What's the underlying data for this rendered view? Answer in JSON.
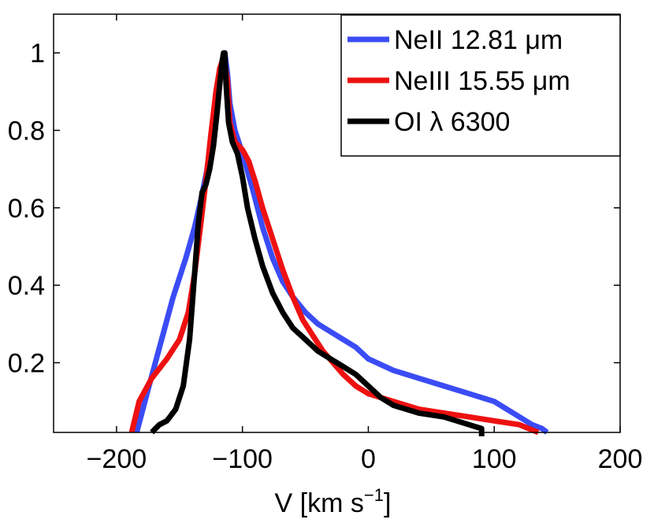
{
  "chart_data": {
    "type": "line",
    "xlabel": "V [km s",
    "xlabel_sup": "−1",
    "xlabel_close": "]",
    "ylabel": "",
    "xlim": [
      -250,
      200
    ],
    "ylim": [
      0.02,
      1.1
    ],
    "x_ticks": [
      -200,
      -100,
      0,
      100,
      200
    ],
    "x_tick_labels": [
      "−200",
      "−100",
      "0",
      "100",
      "200"
    ],
    "y_ticks": [
      0.2,
      0.4,
      0.6,
      0.8,
      1.0
    ],
    "y_tick_labels": [
      "0.2",
      "0.4",
      "0.6",
      "0.8",
      "1"
    ],
    "grid": false,
    "legend_position": "top-right",
    "series": [
      {
        "name": "NeII 12.81 μm",
        "color": "#3b4cf5",
        "x": [
          -184,
          -175,
          -165,
          -155,
          -145,
          -138,
          -133,
          -128,
          -124,
          -120,
          -118,
          -116,
          -114,
          -112,
          -110,
          -106,
          -100,
          -92,
          -84,
          -76,
          -68,
          -60,
          -50,
          -40,
          -30,
          -20,
          -10,
          0,
          20,
          40,
          60,
          80,
          100,
          110,
          120,
          130,
          138,
          142
        ],
        "y": [
          0.02,
          0.13,
          0.25,
          0.37,
          0.47,
          0.55,
          0.62,
          0.7,
          0.79,
          0.88,
          0.94,
          0.98,
          1.0,
          0.95,
          0.87,
          0.8,
          0.74,
          0.65,
          0.55,
          0.47,
          0.41,
          0.37,
          0.33,
          0.3,
          0.28,
          0.26,
          0.24,
          0.21,
          0.18,
          0.16,
          0.14,
          0.12,
          0.1,
          0.08,
          0.06,
          0.04,
          0.03,
          0.02
        ]
      },
      {
        "name": "NeIII 15.55 μm",
        "color": "#ee1111",
        "x": [
          -188,
          -182,
          -172,
          -160,
          -150,
          -143,
          -138,
          -133,
          -129,
          -125,
          -121,
          -118,
          -115,
          -112,
          -110,
          -106,
          -100,
          -95,
          -90,
          -84,
          -76,
          -68,
          -60,
          -52,
          -44,
          -36,
          -28,
          -20,
          -10,
          0,
          20,
          40,
          60,
          80,
          100,
          120,
          135
        ],
        "y": [
          0.02,
          0.1,
          0.16,
          0.21,
          0.26,
          0.33,
          0.43,
          0.56,
          0.67,
          0.79,
          0.9,
          0.96,
          0.99,
          0.93,
          0.82,
          0.77,
          0.75,
          0.72,
          0.67,
          0.6,
          0.52,
          0.44,
          0.37,
          0.31,
          0.27,
          0.23,
          0.2,
          0.17,
          0.14,
          0.12,
          0.1,
          0.08,
          0.07,
          0.06,
          0.05,
          0.04,
          0.02
        ]
      },
      {
        "name": "OI λ 6300",
        "color": "#000000",
        "x": [
          -172,
          -166,
          -160,
          -153,
          -147,
          -142,
          -138,
          -135,
          -132,
          -129,
          -126,
          -123,
          -120,
          -118,
          -116,
          -115,
          -114,
          -113,
          -111,
          -108,
          -104,
          -100,
          -96,
          -90,
          -84,
          -76,
          -68,
          -60,
          -50,
          -40,
          -30,
          -20,
          -10,
          0,
          10,
          20,
          40,
          60,
          80,
          90,
          90
        ],
        "y": [
          0.02,
          0.04,
          0.05,
          0.08,
          0.14,
          0.26,
          0.43,
          0.56,
          0.64,
          0.66,
          0.7,
          0.76,
          0.85,
          0.92,
          0.98,
          1.0,
          1.0,
          0.92,
          0.82,
          0.77,
          0.74,
          0.68,
          0.6,
          0.52,
          0.45,
          0.38,
          0.33,
          0.29,
          0.26,
          0.23,
          0.21,
          0.19,
          0.17,
          0.14,
          0.11,
          0.09,
          0.07,
          0.06,
          0.04,
          0.03,
          0.01
        ]
      }
    ]
  }
}
